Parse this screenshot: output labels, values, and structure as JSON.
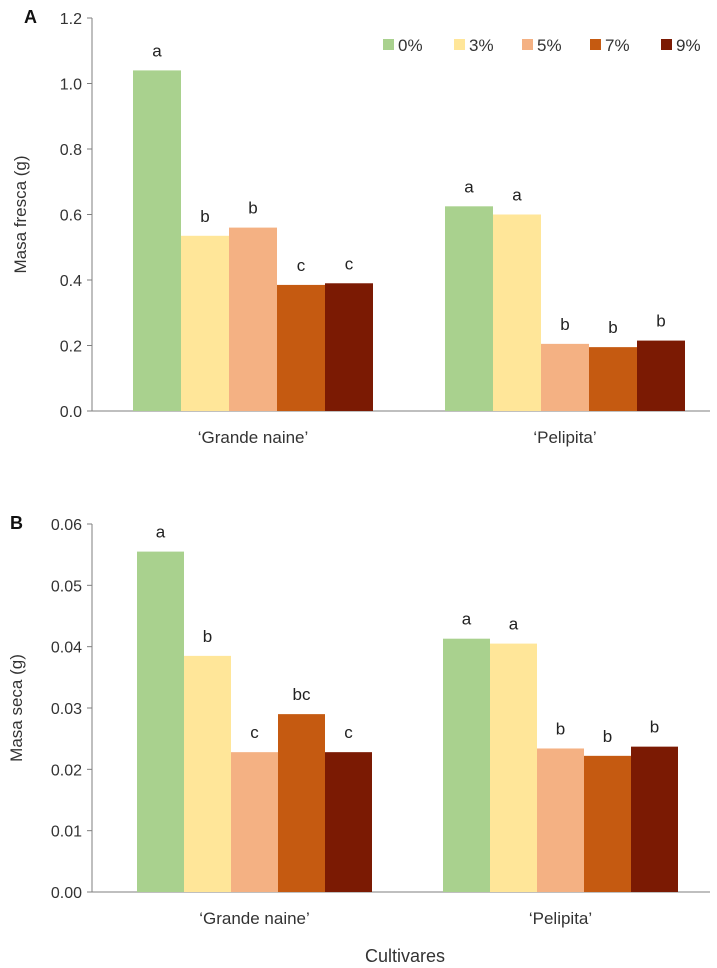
{
  "colors": {
    "s0": "#a9d18e",
    "s3": "#ffe699",
    "s5": "#f4b183",
    "s7": "#c55a11",
    "s9": "#7b1a03",
    "axis": "#7f7f7f"
  },
  "chart_data": [
    {
      "type": "bar",
      "panel_label": "A",
      "ylabel": "Masa fresca (g)",
      "xlabel": "",
      "ylim": [
        0,
        1.2
      ],
      "yticks": [
        "0.0",
        "0.2",
        "0.4",
        "0.6",
        "0.8",
        "1.0",
        "1.2"
      ],
      "categories": [
        "‘Grande naine’",
        "‘Pelipita’"
      ],
      "legend": {
        "position": "top-right",
        "entries": [
          "0%",
          "3%",
          "5%",
          "7%",
          "9%"
        ]
      },
      "series": [
        {
          "name": "0%",
          "values": [
            1.04,
            0.625
          ],
          "letters": [
            "a",
            "a"
          ]
        },
        {
          "name": "3%",
          "values": [
            0.535,
            0.6
          ],
          "letters": [
            "b",
            "a"
          ]
        },
        {
          "name": "5%",
          "values": [
            0.56,
            0.205
          ],
          "letters": [
            "b",
            "b"
          ]
        },
        {
          "name": "7%",
          "values": [
            0.385,
            0.195
          ],
          "letters": [
            "c",
            "b"
          ]
        },
        {
          "name": "9%",
          "values": [
            0.39,
            0.215
          ],
          "letters": [
            "c",
            "b"
          ]
        }
      ]
    },
    {
      "type": "bar",
      "panel_label": "B",
      "ylabel": "Masa seca (g)",
      "xlabel": "Cultivares",
      "ylim": [
        0,
        0.06
      ],
      "yticks": [
        "0.00",
        "0.01",
        "0.02",
        "0.03",
        "0.04",
        "0.05",
        "0.06"
      ],
      "categories": [
        "‘Grande naine’",
        "‘Pelipita’"
      ],
      "series": [
        {
          "name": "0%",
          "values": [
            0.0555,
            0.0413
          ],
          "letters": [
            "a",
            "a"
          ]
        },
        {
          "name": "3%",
          "values": [
            0.0385,
            0.0405
          ],
          "letters": [
            "b",
            "a"
          ]
        },
        {
          "name": "5%",
          "values": [
            0.0228,
            0.0234
          ],
          "letters": [
            "c",
            "b"
          ]
        },
        {
          "name": "7%",
          "values": [
            0.029,
            0.0222
          ],
          "letters": [
            "bc",
            "b"
          ]
        },
        {
          "name": "9%",
          "values": [
            0.0228,
            0.0237
          ],
          "letters": [
            "c",
            "b"
          ]
        }
      ]
    }
  ]
}
